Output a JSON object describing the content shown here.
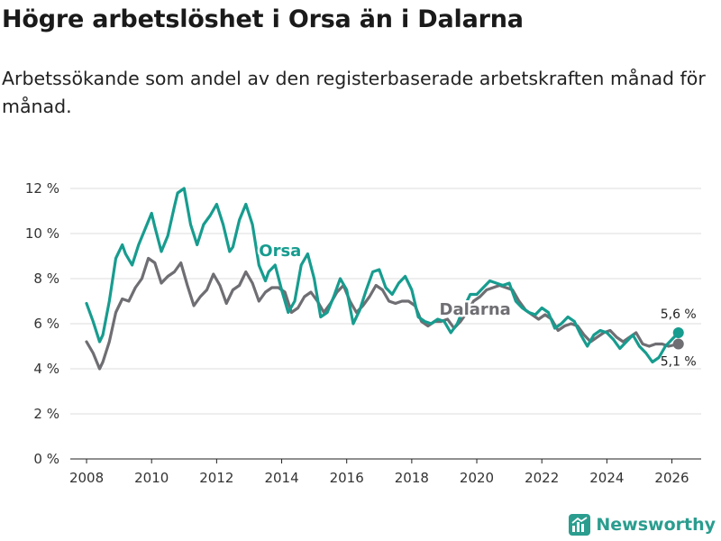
{
  "title": "Högre arbetslöshet i Orsa än i Dalarna",
  "subtitle": "Arbetssökande som andel av den registerbaserade arbetskraften månad för månad.",
  "brand": {
    "name": "Newsworthy",
    "icon": "newsworthy-logo-icon"
  },
  "colors": {
    "orsa": "#179c8f",
    "dalarna": "#6e6e73",
    "grid": "#dcdcdc"
  },
  "chart_data": {
    "type": "line",
    "title": "Högre arbetslöshet i Orsa än i Dalarna",
    "xlabel": "",
    "ylabel": "",
    "xlim": [
      2007.5,
      2026.9
    ],
    "ylim": [
      0,
      12.6
    ],
    "x_ticks": [
      2008,
      2010,
      2012,
      2014,
      2016,
      2018,
      2020,
      2022,
      2024,
      2026
    ],
    "x_tick_labels": [
      "2008",
      "2010",
      "2012",
      "2014",
      "2016",
      "2018",
      "2020",
      "2022",
      "2024",
      "2026"
    ],
    "y_ticks": [
      0,
      2,
      4,
      6,
      8,
      10,
      12
    ],
    "y_tick_labels": [
      "0 %",
      "2 %",
      "4 %",
      "6 %",
      "8 %",
      "10 %",
      "12 %"
    ],
    "grid": true,
    "series": [
      {
        "name": "Orsa",
        "label": "Orsa",
        "color": "#179c8f",
        "end_label": "5,6 %",
        "end_value": 5.6,
        "end_x": 2026.2,
        "x": [
          2008.0,
          2008.2,
          2008.4,
          2008.5,
          2008.7,
          2008.9,
          2009.1,
          2009.2,
          2009.4,
          2009.6,
          2009.8,
          2010.0,
          2010.1,
          2010.3,
          2010.5,
          2010.7,
          2010.8,
          2011.0,
          2011.2,
          2011.4,
          2011.6,
          2011.8,
          2012.0,
          2012.2,
          2012.4,
          2012.5,
          2012.7,
          2012.9,
          2013.1,
          2013.3,
          2013.5,
          2013.6,
          2013.8,
          2014.0,
          2014.2,
          2014.4,
          2014.6,
          2014.8,
          2015.0,
          2015.2,
          2015.4,
          2015.6,
          2015.8,
          2016.0,
          2016.2,
          2016.4,
          2016.6,
          2016.8,
          2017.0,
          2017.2,
          2017.4,
          2017.6,
          2017.8,
          2018.0,
          2018.2,
          2018.4,
          2018.6,
          2018.8,
          2019.0,
          2019.2,
          2019.4,
          2019.6,
          2019.8,
          2020.0,
          2020.2,
          2020.4,
          2020.6,
          2020.8,
          2021.0,
          2021.2,
          2021.4,
          2021.6,
          2021.8,
          2022.0,
          2022.2,
          2022.4,
          2022.6,
          2022.8,
          2023.0,
          2023.2,
          2023.4,
          2023.6,
          2023.8,
          2024.0,
          2024.2,
          2024.4,
          2024.6,
          2024.8,
          2025.0,
          2025.2,
          2025.4,
          2025.6,
          2025.8,
          2026.0,
          2026.2
        ],
        "values": [
          6.9,
          6.1,
          5.2,
          5.5,
          7.0,
          8.9,
          9.5,
          9.1,
          8.6,
          9.5,
          10.2,
          10.9,
          10.3,
          9.2,
          9.9,
          11.2,
          11.8,
          12.0,
          10.4,
          9.5,
          10.4,
          10.8,
          11.3,
          10.4,
          9.2,
          9.4,
          10.6,
          11.3,
          10.4,
          8.6,
          7.9,
          8.3,
          8.6,
          7.5,
          6.5,
          7.0,
          8.6,
          9.1,
          8.0,
          6.3,
          6.5,
          7.2,
          8.0,
          7.5,
          6.0,
          6.6,
          7.5,
          8.3,
          8.4,
          7.6,
          7.3,
          7.8,
          8.1,
          7.5,
          6.3,
          6.1,
          6.0,
          6.2,
          6.1,
          5.6,
          6.0,
          6.7,
          7.3,
          7.3,
          7.6,
          7.9,
          7.8,
          7.7,
          7.8,
          7.0,
          6.7,
          6.5,
          6.4,
          6.7,
          6.5,
          5.8,
          6.0,
          6.3,
          6.1,
          5.5,
          5.0,
          5.5,
          5.7,
          5.6,
          5.3,
          4.9,
          5.2,
          5.5,
          5.0,
          4.7,
          4.3,
          4.5,
          5.0,
          5.3,
          5.6
        ]
      },
      {
        "name": "Dalarna",
        "label": "Dalarna",
        "color": "#6e6e73",
        "end_label": "5,1 %",
        "end_value": 5.1,
        "end_x": 2026.2,
        "x": [
          2008.0,
          2008.2,
          2008.4,
          2008.5,
          2008.7,
          2008.9,
          2009.1,
          2009.3,
          2009.5,
          2009.7,
          2009.9,
          2010.1,
          2010.3,
          2010.5,
          2010.7,
          2010.9,
          2011.1,
          2011.3,
          2011.5,
          2011.7,
          2011.9,
          2012.1,
          2012.3,
          2012.5,
          2012.7,
          2012.9,
          2013.1,
          2013.3,
          2013.5,
          2013.7,
          2013.9,
          2014.1,
          2014.3,
          2014.5,
          2014.7,
          2014.9,
          2015.1,
          2015.3,
          2015.5,
          2015.7,
          2015.9,
          2016.1,
          2016.3,
          2016.5,
          2016.7,
          2016.9,
          2017.1,
          2017.3,
          2017.5,
          2017.7,
          2017.9,
          2018.1,
          2018.3,
          2018.5,
          2018.7,
          2018.9,
          2019.1,
          2019.3,
          2019.5,
          2019.7,
          2019.9,
          2020.1,
          2020.3,
          2020.5,
          2020.7,
          2020.9,
          2021.1,
          2021.3,
          2021.5,
          2021.7,
          2021.9,
          2022.1,
          2022.3,
          2022.5,
          2022.7,
          2022.9,
          2023.1,
          2023.3,
          2023.5,
          2023.7,
          2023.9,
          2024.1,
          2024.3,
          2024.5,
          2024.7,
          2024.9,
          2025.1,
          2025.3,
          2025.5,
          2025.7,
          2025.9,
          2026.2
        ],
        "values": [
          5.2,
          4.7,
          4.0,
          4.3,
          5.2,
          6.5,
          7.1,
          7.0,
          7.6,
          8.0,
          8.9,
          8.7,
          7.8,
          8.1,
          8.3,
          8.7,
          7.7,
          6.8,
          7.2,
          7.5,
          8.2,
          7.7,
          6.9,
          7.5,
          7.7,
          8.3,
          7.8,
          7.0,
          7.4,
          7.6,
          7.6,
          7.4,
          6.5,
          6.7,
          7.2,
          7.4,
          7.0,
          6.5,
          6.9,
          7.4,
          7.7,
          7.0,
          6.5,
          6.8,
          7.2,
          7.7,
          7.5,
          7.0,
          6.9,
          7.0,
          7.0,
          6.8,
          6.1,
          5.9,
          6.1,
          6.1,
          6.2,
          5.8,
          6.1,
          6.5,
          7.0,
          7.2,
          7.5,
          7.6,
          7.7,
          7.6,
          7.5,
          7.0,
          6.6,
          6.4,
          6.2,
          6.4,
          6.2,
          5.7,
          5.9,
          6.0,
          5.9,
          5.5,
          5.2,
          5.4,
          5.6,
          5.7,
          5.4,
          5.2,
          5.4,
          5.6,
          5.1,
          5.0,
          5.1,
          5.1,
          5.0,
          5.1
        ]
      }
    ]
  }
}
